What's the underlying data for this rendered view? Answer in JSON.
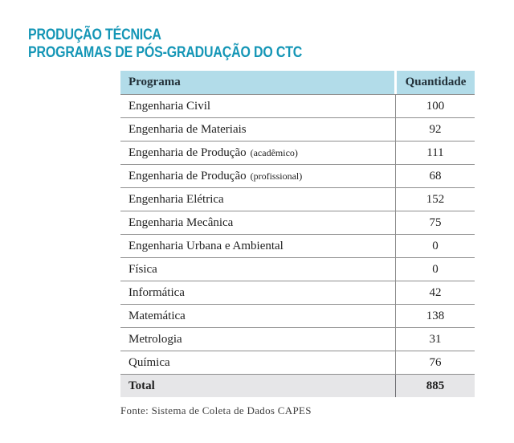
{
  "theme": {
    "teal": "#1496b6",
    "header_bg": "#b2dce9",
    "header_text": "#223038",
    "total_bg": "#e6e6e8",
    "line_gray": "#8e8e8e",
    "text_dark": "#1f1f1f"
  },
  "title": {
    "line1": "PRODUÇÃO TÉCNICA",
    "line2": "PROGRAMAS DE PÓS-GRADUAÇÃO DO CTC"
  },
  "table": {
    "header": {
      "program": "Programa",
      "quantity": "Quantidade"
    },
    "rows": [
      {
        "label": "Engenharia Civil",
        "sublabel": "",
        "value": "100"
      },
      {
        "label": "Engenharia de Materiais",
        "sublabel": "",
        "value": "92"
      },
      {
        "label": "Engenharia de Produção",
        "sublabel": "(acadêmico)",
        "value": "111"
      },
      {
        "label": "Engenharia de Produção",
        "sublabel": "(profissional)",
        "value": "68"
      },
      {
        "label": "Engenharia Elétrica",
        "sublabel": "",
        "value": "152"
      },
      {
        "label": "Engenharia Mecânica",
        "sublabel": "",
        "value": "75"
      },
      {
        "label": "Engenharia Urbana e Ambiental",
        "sublabel": "",
        "value": "0"
      },
      {
        "label": "Física",
        "sublabel": "",
        "value": "0"
      },
      {
        "label": "Informática",
        "sublabel": "",
        "value": "42"
      },
      {
        "label": "Matemática",
        "sublabel": "",
        "value": "138"
      },
      {
        "label": "Metrologia",
        "sublabel": "",
        "value": "31"
      },
      {
        "label": "Química",
        "sublabel": "",
        "value": "76"
      }
    ],
    "total": {
      "label": "Total",
      "value": "885"
    }
  },
  "footer": {
    "source": "Fonte: Sistema de Coleta de Dados CAPES"
  }
}
